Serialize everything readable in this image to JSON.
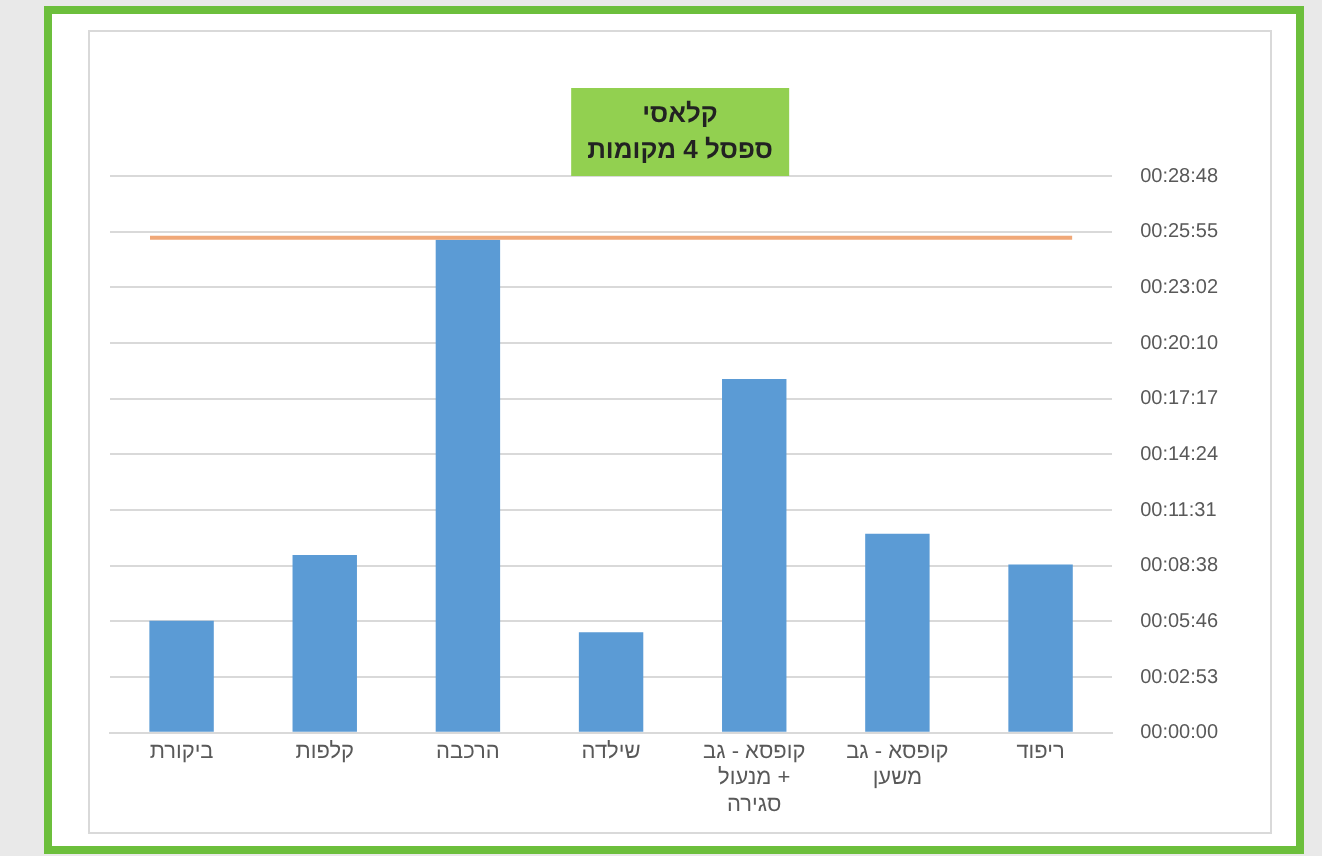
{
  "chart_data": {
    "type": "bar",
    "title": "קלאסי",
    "subtitle": "ספסל 4 מקומות",
    "categories": [
      "ביקורת",
      "קלפות",
      "הרכבה",
      "שילדה",
      "קופסא - גב מנעול + סגירה",
      "קופסא - גב משען",
      "ריפוד"
    ],
    "values": [
      5.8,
      9.2,
      25.5,
      5.2,
      18.3,
      10.3,
      8.7
    ],
    "color": "#5b9bd5",
    "ylim": [
      0,
      28.8
    ],
    "yticks": [
      {
        "value": 0,
        "label": "00:00:00"
      },
      {
        "value": 2.88,
        "label": "00:02:53"
      },
      {
        "value": 5.76,
        "label": "00:05:46"
      },
      {
        "value": 8.64,
        "label": "00:08:38"
      },
      {
        "value": 11.52,
        "label": "00:11:31"
      },
      {
        "value": 14.4,
        "label": "00:14:24"
      },
      {
        "value": 17.28,
        "label": "00:17:17"
      },
      {
        "value": 20.16,
        "label": "00:20:10"
      },
      {
        "value": 23.04,
        "label": "00:23:02"
      },
      {
        "value": 25.92,
        "label": "00:25:55"
      },
      {
        "value": 28.8,
        "label": "00:28:48"
      }
    ],
    "ref_lines": [
      {
        "axis": "y",
        "value": 25.6,
        "color": "#f0a878"
      }
    ],
    "grid": "y",
    "legend": false
  }
}
